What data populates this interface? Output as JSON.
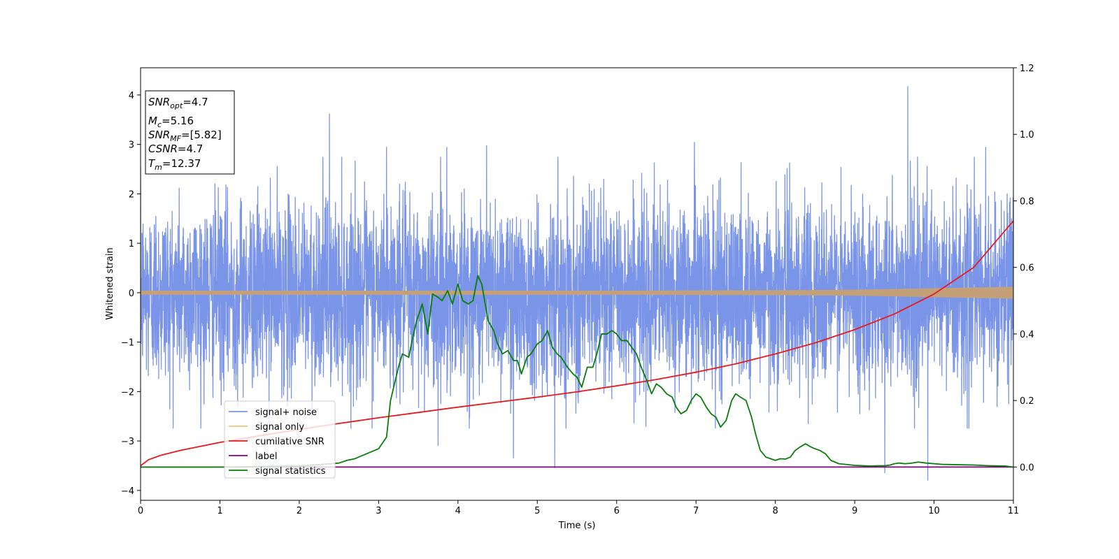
{
  "chart_data": {
    "type": "line",
    "title": "",
    "xlabel": "Time (s)",
    "ylabel": "Whitened strain",
    "xlim": [
      0,
      11
    ],
    "ylim": [
      -4.2,
      4.55
    ],
    "ylim_right": [
      -0.1,
      1.2
    ],
    "x_ticks": [
      "0",
      "1",
      "2",
      "3",
      "4",
      "5",
      "6",
      "7",
      "8",
      "9",
      "10",
      "11"
    ],
    "y_ticks": [
      "−4",
      "−3",
      "−2",
      "−1",
      "0",
      "1",
      "2",
      "3",
      "4"
    ],
    "y_ticks_right": [
      "0.0",
      "0.2",
      "0.4",
      "0.6",
      "0.8",
      "1.0",
      "1.2"
    ],
    "grid": false,
    "legend_position": "lower-left",
    "annotation": {
      "snr_opt": {
        "name": "SNR",
        "sub": "opt",
        "value": "=4.7"
      },
      "mc": {
        "name": "M",
        "sub": "c",
        "value": "=5.16"
      },
      "snr_mf": {
        "name": "SNR",
        "sub": "MF",
        "value": "=[5.82]"
      },
      "csnr": {
        "name": "CSNR",
        "sub": "",
        "value": "=4.7"
      },
      "tm": {
        "name": "T",
        "sub": "m",
        "value": "=12.37"
      }
    },
    "colors": {
      "signal_noise": "#7a94e8",
      "signal_only": "#f5c27a",
      "signal_only_band": "#c3a077",
      "cumulative_snr": "#e8191a",
      "label": "#800080",
      "signal_statistics": "#0a7d0a"
    },
    "series": [
      {
        "name": "signal+ noise",
        "axis": "left",
        "summary": {
          "x_range": [
            0,
            11
          ],
          "typical_amplitude": 2.2,
          "max": 4.18,
          "max_at": 9.67,
          "min": -3.8,
          "min_at": 9.92
        },
        "peaks": [
          {
            "x": 2.38,
            "y": 3.62
          },
          {
            "x": 3.1,
            "y": 2.95
          },
          {
            "x": 3.86,
            "y": 2.95
          },
          {
            "x": 4.36,
            "y": 2.98
          },
          {
            "x": 6.98,
            "y": 3.05
          },
          {
            "x": 9.67,
            "y": 4.18
          },
          {
            "x": 10.65,
            "y": 2.95
          },
          {
            "x": 3.75,
            "y": -3.1
          },
          {
            "x": 4.7,
            "y": -3.35
          },
          {
            "x": 5.22,
            "y": -3.55
          },
          {
            "x": 9.38,
            "y": -3.65
          },
          {
            "x": 9.92,
            "y": -3.8
          }
        ]
      },
      {
        "name": "signal only",
        "axis": "left",
        "amplitude_envelope": {
          "x": [
            0,
            2,
            4,
            6,
            8,
            9,
            10,
            11
          ],
          "y": [
            0.04,
            0.04,
            0.04,
            0.04,
            0.05,
            0.06,
            0.09,
            0.12
          ]
        }
      },
      {
        "name": "cumilative SNR",
        "axis": "right",
        "x": [
          0,
          0.1,
          0.25,
          0.5,
          1,
          1.5,
          2,
          2.5,
          3,
          3.5,
          4,
          4.5,
          5,
          5.5,
          6,
          6.5,
          7,
          7.5,
          8,
          8.5,
          9,
          9.5,
          10,
          10.5,
          11
        ],
        "y": [
          0.004,
          0.022,
          0.035,
          0.05,
          0.074,
          0.094,
          0.113,
          0.131,
          0.148,
          0.164,
          0.18,
          0.195,
          0.21,
          0.226,
          0.244,
          0.263,
          0.285,
          0.31,
          0.34,
          0.373,
          0.413,
          0.46,
          0.52,
          0.6,
          0.74
        ]
      },
      {
        "name": "label",
        "axis": "right",
        "x": [
          0,
          11
        ],
        "y": [
          0,
          0
        ]
      },
      {
        "name": "signal statistics",
        "axis": "right",
        "x": [
          0,
          1,
          2,
          2.3,
          2.5,
          2.6,
          2.7,
          2.8,
          2.9,
          3.0,
          3.1,
          3.15,
          3.2,
          3.25,
          3.3,
          3.38,
          3.43,
          3.48,
          3.55,
          3.62,
          3.68,
          3.75,
          3.8,
          3.87,
          3.93,
          4.0,
          4.06,
          4.13,
          4.19,
          4.25,
          4.3,
          4.38,
          4.45,
          4.5,
          4.56,
          4.63,
          4.7,
          4.75,
          4.8,
          4.87,
          4.92,
          5.0,
          5.06,
          5.13,
          5.19,
          5.25,
          5.3,
          5.38,
          5.45,
          5.5,
          5.56,
          5.63,
          5.7,
          5.75,
          5.81,
          5.88,
          5.94,
          6.0,
          6.06,
          6.13,
          6.19,
          6.25,
          6.31,
          6.38,
          6.44,
          6.5,
          6.56,
          6.63,
          6.7,
          6.75,
          6.81,
          6.88,
          6.94,
          7.0,
          7.06,
          7.13,
          7.19,
          7.25,
          7.31,
          7.38,
          7.45,
          7.5,
          7.56,
          7.63,
          7.7,
          7.75,
          7.81,
          7.88,
          7.94,
          8.0,
          8.06,
          8.13,
          8.19,
          8.25,
          8.31,
          8.38,
          8.45,
          8.5,
          8.56,
          8.63,
          8.7,
          8.8,
          9.0,
          9.2,
          9.3,
          9.38,
          9.45,
          9.5,
          9.56,
          9.63,
          9.7,
          9.8,
          9.9,
          10.0,
          10.1,
          10.3,
          10.5,
          10.7,
          10.9,
          11.0
        ],
        "y": [
          0.0,
          0.0,
          0.003,
          0.008,
          0.012,
          0.02,
          0.025,
          0.035,
          0.045,
          0.055,
          0.09,
          0.2,
          0.25,
          0.3,
          0.34,
          0.33,
          0.39,
          0.44,
          0.49,
          0.4,
          0.52,
          0.51,
          0.5,
          0.53,
          0.49,
          0.55,
          0.5,
          0.49,
          0.5,
          0.575,
          0.55,
          0.44,
          0.41,
          0.37,
          0.34,
          0.35,
          0.32,
          0.32,
          0.28,
          0.33,
          0.34,
          0.37,
          0.38,
          0.41,
          0.36,
          0.34,
          0.33,
          0.3,
          0.28,
          0.27,
          0.24,
          0.3,
          0.3,
          0.34,
          0.4,
          0.4,
          0.41,
          0.4,
          0.38,
          0.38,
          0.36,
          0.34,
          0.3,
          0.26,
          0.22,
          0.25,
          0.24,
          0.22,
          0.21,
          0.18,
          0.16,
          0.17,
          0.2,
          0.22,
          0.21,
          0.18,
          0.16,
          0.15,
          0.12,
          0.14,
          0.2,
          0.22,
          0.21,
          0.2,
          0.15,
          0.1,
          0.05,
          0.03,
          0.025,
          0.02,
          0.025,
          0.024,
          0.03,
          0.05,
          0.06,
          0.07,
          0.06,
          0.055,
          0.05,
          0.04,
          0.02,
          0.01,
          0.005,
          0.003,
          0.004,
          0.004,
          0.006,
          0.01,
          0.012,
          0.01,
          0.011,
          0.015,
          0.012,
          0.01,
          0.008,
          0.007,
          0.006,
          0.004,
          0.003,
          0.0
        ]
      }
    ]
  }
}
